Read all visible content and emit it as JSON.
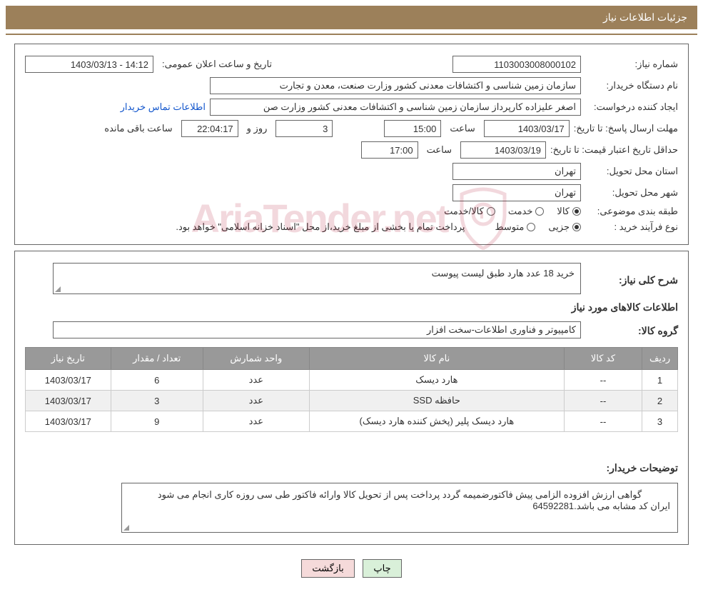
{
  "header": {
    "title": "جزئیات اطلاعات نیاز"
  },
  "fields": {
    "need_number_label": "شماره نیاز:",
    "need_number": "1103003008000102",
    "announce_label": "تاریخ و ساعت اعلان عمومی:",
    "announce_value": "14:12 - 1403/03/13",
    "buyer_org_label": "نام دستگاه خریدار:",
    "buyer_org": "سازمان زمین شناسی و اکتشافات معدنی کشور وزارت صنعت، معدن و تجارت",
    "requester_label": "ایجاد کننده درخواست:",
    "requester": "اصغر علیزاده کارپرداز سازمان زمین شناسی و اکتشافات معدنی کشور وزارت صن",
    "buyer_contact_link": "اطلاعات تماس خریدار",
    "deadline_send_label": "مهلت ارسال پاسخ: تا تاریخ:",
    "deadline_send_date": "1403/03/17",
    "time_label": "ساعت",
    "deadline_send_time": "15:00",
    "remain_days": "3",
    "days_and_label": "روز و",
    "remain_time": "22:04:17",
    "remain_suffix": "ساعت باقی مانده",
    "min_validity_label": "حداقل تاریخ اعتبار قیمت: تا تاریخ:",
    "min_validity_date": "1403/03/19",
    "min_validity_time": "17:00",
    "province_label": "استان محل تحویل:",
    "province": "تهران",
    "city_label": "شهر محل تحویل:",
    "city": "تهران",
    "category_label": "طبقه بندی موضوعی:",
    "goods_radio": "کالا",
    "service_radio": "خدمت",
    "goods_service_radio": "کالا/خدمت",
    "purchase_type_label": "نوع فرآیند خرید :",
    "minor_radio": "جزیی",
    "medium_radio": "متوسط",
    "payment_note": "پرداخت تمام یا بخشی از مبلغ خرید،از محل \"اسناد خزانه اسلامی\" خواهد بود.",
    "summary_label": "شرح کلی نیاز:",
    "summary_text": "خرید 18 عدد هارد طبق لیست پیوست",
    "goods_info_title": "اطلاعات کالاهای مورد نیاز",
    "goods_group_label": "گروه کالا:",
    "goods_group": "کامپیوتر و فناوری اطلاعات-سخت افزار",
    "buyer_notes_label": "توضیحات خریدار:",
    "buyer_notes_line1": "گواهی ارزش افزوده الزامی پیش فاکتورضمیمه گردد پرداخت پس از تحویل کالا وارائه فاکتور طی سی روزه کاری انجام می شود",
    "buyer_notes_line2": "ایران کد مشابه می باشد.64592281"
  },
  "table": {
    "headers": {
      "idx": "ردیف",
      "code": "کد کالا",
      "name": "نام کالا",
      "unit": "واحد شمارش",
      "qty": "تعداد / مقدار",
      "date": "تاریخ نیاز"
    },
    "rows": [
      {
        "idx": "1",
        "code": "--",
        "name": "هارد دیسک",
        "unit": "عدد",
        "qty": "6",
        "date": "1403/03/17"
      },
      {
        "idx": "2",
        "code": "--",
        "name": "حافظه SSD",
        "unit": "عدد",
        "qty": "3",
        "date": "1403/03/17"
      },
      {
        "idx": "3",
        "code": "--",
        "name": "هارد دیسک پلیر (پخش کننده هارد دیسک)",
        "unit": "عدد",
        "qty": "9",
        "date": "1403/03/17"
      }
    ]
  },
  "buttons": {
    "print": "چاپ",
    "back": "بازگشت"
  },
  "watermark": {
    "text": "AriaTender.net"
  },
  "colors": {
    "header_bg": "#9c805a",
    "header_fg": "#ffffff",
    "border": "#666666",
    "table_header_bg": "#999999",
    "link": "#1155cc",
    "btn_print_bg": "#d9f0d9",
    "btn_back_bg": "#f5dada",
    "watermark_color": "#b00020"
  }
}
